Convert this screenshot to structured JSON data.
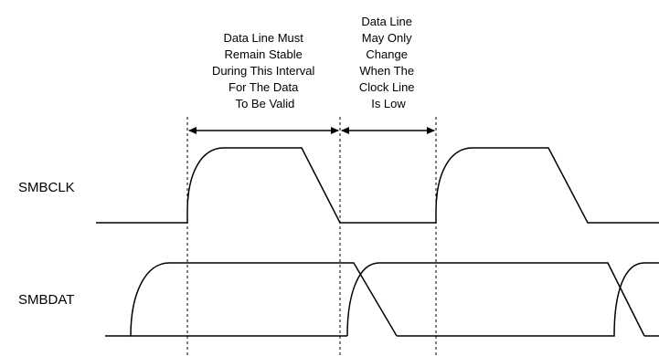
{
  "signals": {
    "clock": "SMBCLK",
    "data": "SMBDAT"
  },
  "annotations": {
    "stable_interval": [
      "Data Line Must",
      "Remain Stable",
      "During This Interval",
      "For The Data",
      "To Be Valid"
    ],
    "change_interval": [
      "Data Line",
      "May Only",
      "Change",
      "When The",
      "Clock Line",
      "Is Low"
    ]
  },
  "colors": {
    "line": "#000000",
    "background": "#ffffff"
  }
}
